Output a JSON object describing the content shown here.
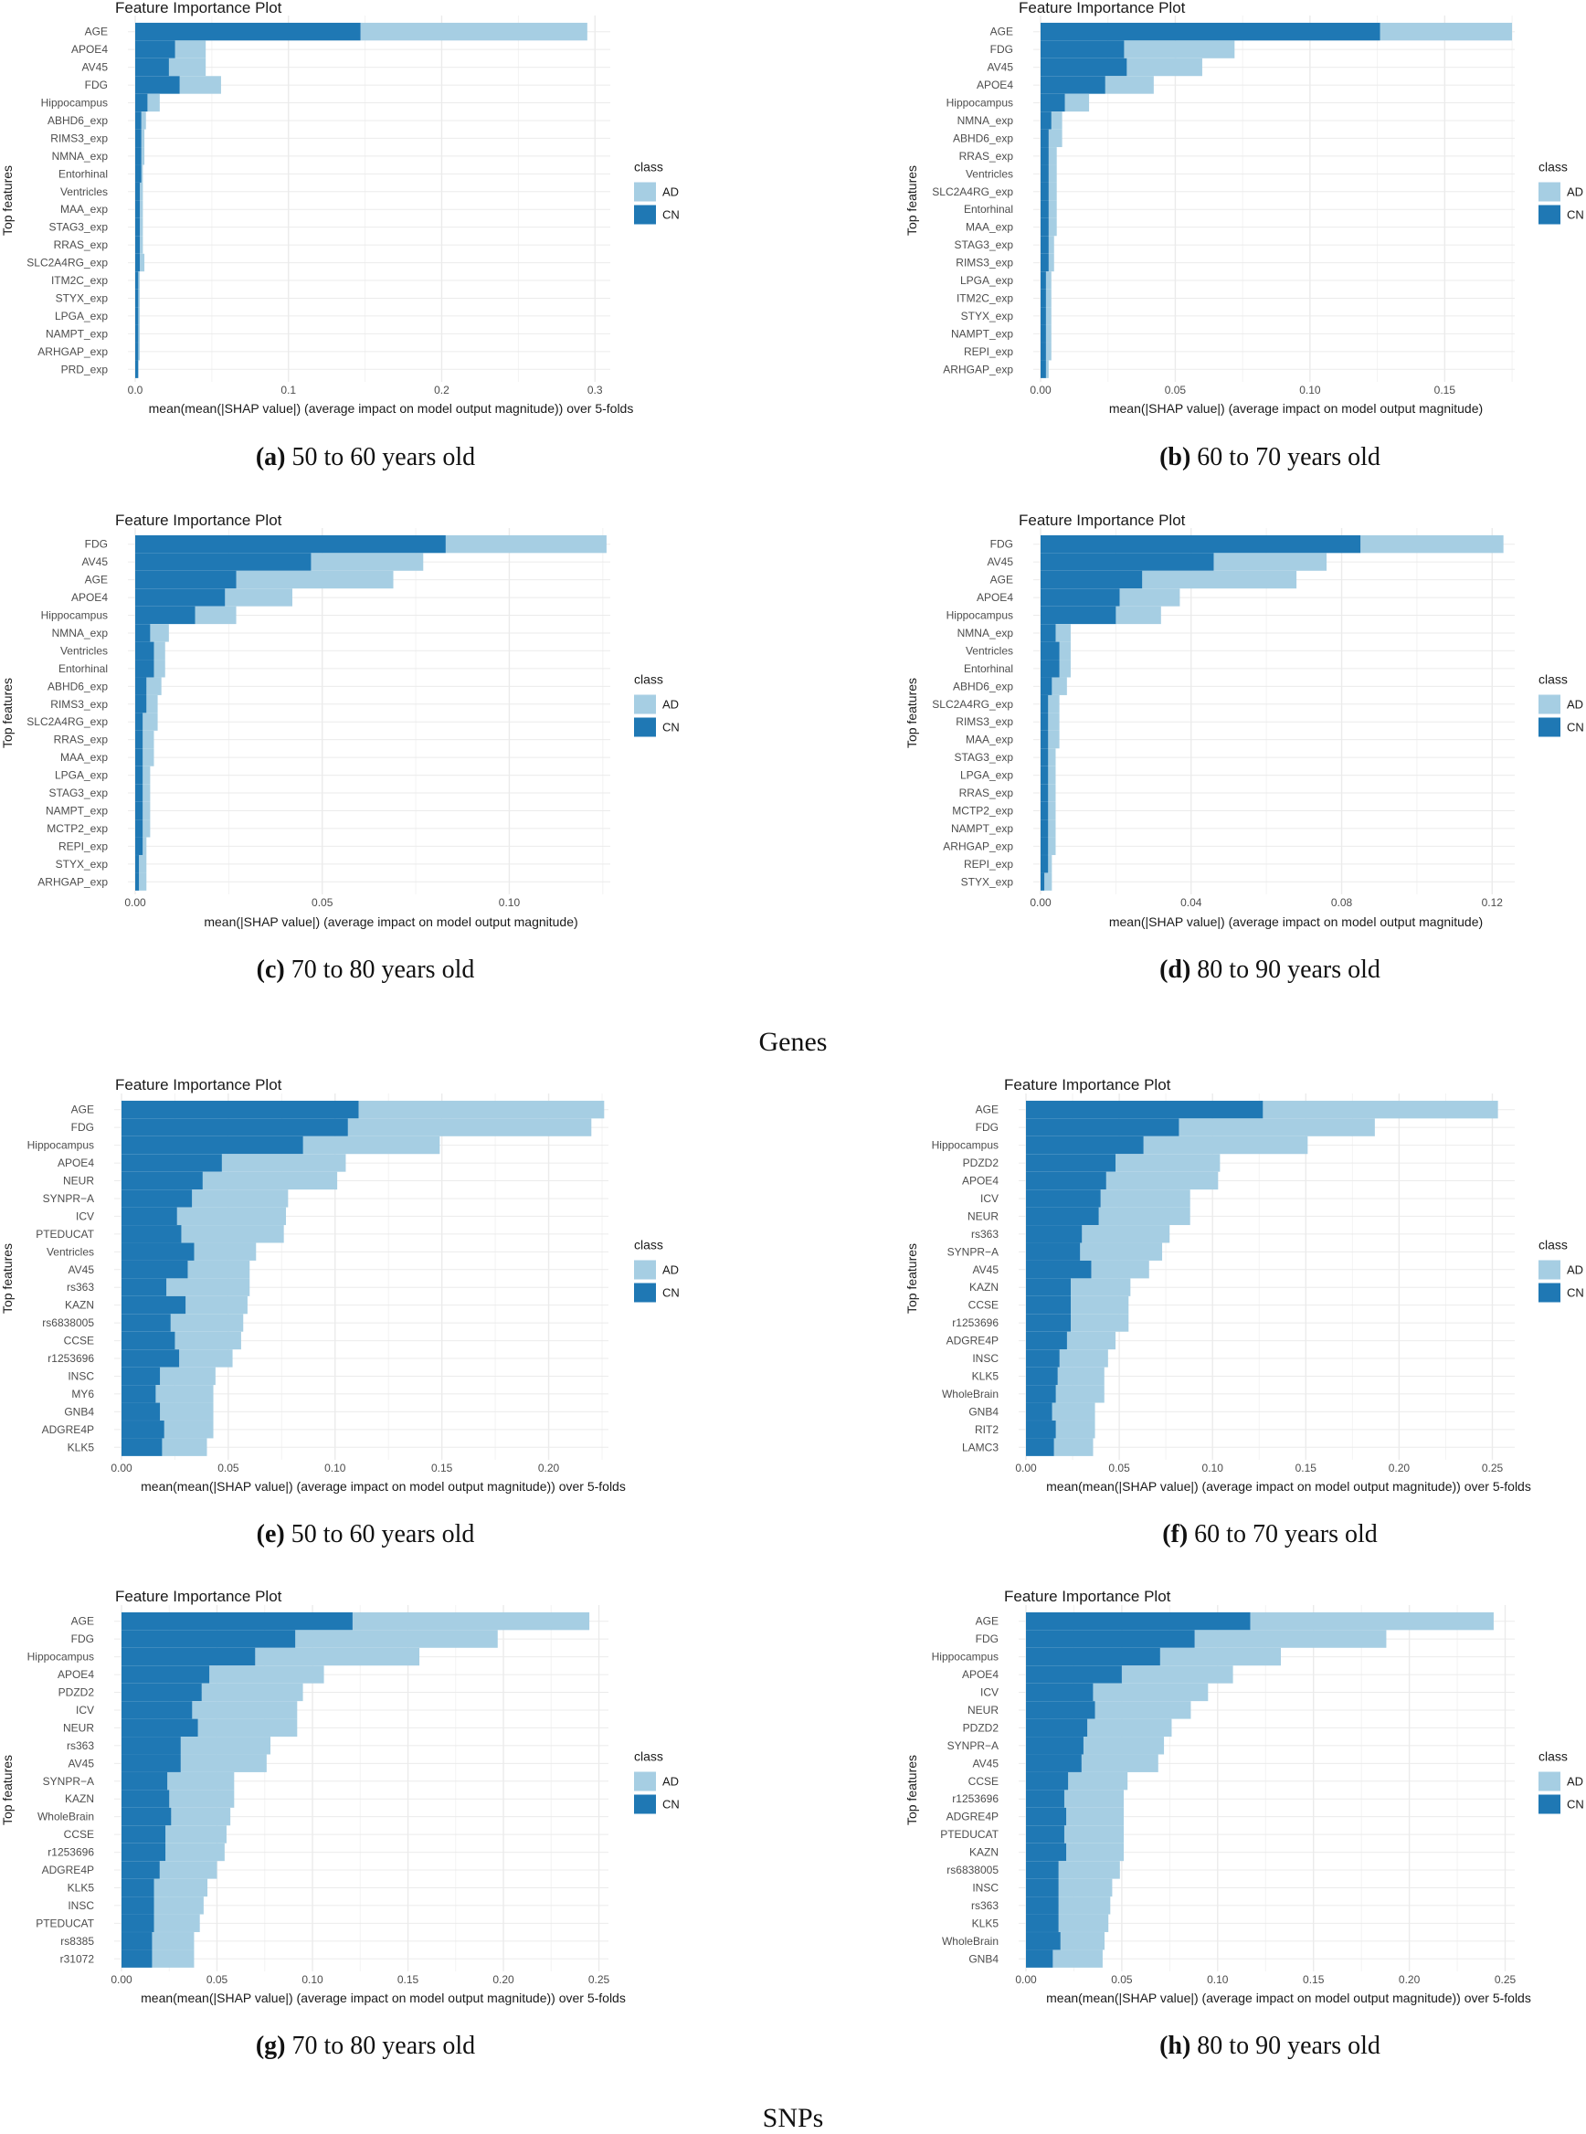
{
  "colors": {
    "ad": "#a6cee3",
    "cn": "#1f78b4",
    "grid": "#ebebeb"
  },
  "sections": {
    "genes": "Genes",
    "snps": "SNPs"
  },
  "chart_data": [
    {
      "type": "bar",
      "stacked": true,
      "orientation": "horizontal",
      "title": "Feature Importance Plot",
      "xlabel": "mean(mean(|SHAP value|) (average impact on model output magnitude)) over 5-folds",
      "ylabel": "Top features",
      "legend_title": "class",
      "legend": [
        "AD",
        "CN"
      ],
      "xlim": [
        0,
        0.31
      ],
      "ticks": [
        0,
        0.1,
        0.2,
        0.3
      ],
      "tick_labels": [
        "0.0",
        "0.1",
        "0.2",
        "0.3"
      ],
      "caption_tag": "(a)",
      "caption_text": " 50 to 60 years old",
      "categories": [
        "AGE",
        "APOE4",
        "AV45",
        "FDG",
        "Hippocampus",
        "ABHD6_exp",
        "RIMS3_exp",
        "NMNA_exp",
        "Entorhinal",
        "Ventricles",
        "MAA_exp",
        "STAG3_exp",
        "RRAS_exp",
        "SLC2A4RG_exp",
        "ITM2C_exp",
        "STYX_exp",
        "LPGA_exp",
        "NAMPT_exp",
        "ARHGAP_exp",
        "PRD_exp"
      ],
      "series": [
        {
          "name": "CN",
          "values": [
            0.147,
            0.026,
            0.022,
            0.029,
            0.008,
            0.004,
            0.004,
            0.004,
            0.004,
            0.003,
            0.003,
            0.003,
            0.003,
            0.003,
            0.002,
            0.002,
            0.002,
            0.002,
            0.002,
            0.002
          ]
        },
        {
          "name": "AD",
          "values": [
            0.148,
            0.02,
            0.024,
            0.027,
            0.008,
            0.003,
            0.002,
            0.002,
            0.001,
            0.002,
            0.002,
            0.002,
            0.002,
            0.003,
            0.001,
            0.001,
            0.001,
            0.001,
            0.001,
            0.0
          ]
        }
      ]
    },
    {
      "type": "bar",
      "stacked": true,
      "orientation": "horizontal",
      "title": "Feature Importance Plot",
      "xlabel": "mean(|SHAP value|) (average impact on model output magnitude)",
      "ylabel": "Top features",
      "legend_title": "class",
      "legend": [
        "AD",
        "CN"
      ],
      "xlim": [
        0,
        0.176
      ],
      "ticks": [
        0,
        0.05,
        0.1,
        0.15
      ],
      "tick_labels": [
        "0.00",
        "0.05",
        "0.10",
        "0.15"
      ],
      "caption_tag": "(b)",
      "caption_text": " 60 to 70 years old",
      "categories": [
        "AGE",
        "FDG",
        "AV45",
        "APOE4",
        "Hippocampus",
        "NMNA_exp",
        "ABHD6_exp",
        "RRAS_exp",
        "Ventricles",
        "SLC2A4RG_exp",
        "Entorhinal",
        "MAA_exp",
        "STAG3_exp",
        "RIMS3_exp",
        "LPGA_exp",
        "ITM2C_exp",
        "STYX_exp",
        "NAMPT_exp",
        "REPI_exp",
        "ARHGAP_exp"
      ],
      "series": [
        {
          "name": "CN",
          "values": [
            0.126,
            0.031,
            0.032,
            0.024,
            0.009,
            0.004,
            0.003,
            0.003,
            0.003,
            0.003,
            0.003,
            0.003,
            0.003,
            0.003,
            0.002,
            0.002,
            0.002,
            0.002,
            0.002,
            0.002
          ]
        },
        {
          "name": "AD",
          "values": [
            0.049,
            0.041,
            0.028,
            0.018,
            0.009,
            0.004,
            0.005,
            0.003,
            0.003,
            0.003,
            0.003,
            0.003,
            0.002,
            0.002,
            0.002,
            0.002,
            0.002,
            0.002,
            0.002,
            0.001
          ]
        }
      ]
    },
    {
      "type": "bar",
      "stacked": true,
      "orientation": "horizontal",
      "title": "Feature Importance Plot",
      "xlabel": "mean(|SHAP value|) (average impact on model output magnitude)",
      "ylabel": "Top features",
      "legend_title": "class",
      "legend": [
        "AD",
        "CN"
      ],
      "xlim": [
        0,
        0.127
      ],
      "ticks": [
        0,
        0.05,
        0.1
      ],
      "tick_labels": [
        "0.00",
        "0.05",
        "0.10"
      ],
      "caption_tag": "(c)",
      "caption_text": " 70 to 80 years old",
      "categories": [
        "FDG",
        "AV45",
        "AGE",
        "APOE4",
        "Hippocampus",
        "NMNA_exp",
        "Ventricles",
        "Entorhinal",
        "ABHD6_exp",
        "RIMS3_exp",
        "SLC2A4RG_exp",
        "RRAS_exp",
        "MAA_exp",
        "LPGA_exp",
        "STAG3_exp",
        "NAMPT_exp",
        "MCTP2_exp",
        "REPI_exp",
        "STYX_exp",
        "ARHGAP_exp"
      ],
      "series": [
        {
          "name": "CN",
          "values": [
            0.083,
            0.047,
            0.027,
            0.024,
            0.016,
            0.004,
            0.005,
            0.005,
            0.003,
            0.003,
            0.002,
            0.002,
            0.002,
            0.002,
            0.002,
            0.002,
            0.002,
            0.002,
            0.001,
            0.001
          ]
        },
        {
          "name": "AD",
          "values": [
            0.043,
            0.03,
            0.042,
            0.018,
            0.011,
            0.005,
            0.003,
            0.003,
            0.004,
            0.003,
            0.004,
            0.003,
            0.003,
            0.002,
            0.002,
            0.002,
            0.002,
            0.001,
            0.002,
            0.002
          ]
        }
      ]
    },
    {
      "type": "bar",
      "stacked": true,
      "orientation": "horizontal",
      "title": "Feature Importance Plot",
      "xlabel": "mean(|SHAP value|) (average impact on model output magnitude)",
      "ylabel": "Top features",
      "legend_title": "class",
      "legend": [
        "AD",
        "CN"
      ],
      "xlim": [
        0,
        0.126
      ],
      "ticks": [
        0,
        0.04,
        0.08,
        0.12
      ],
      "tick_labels": [
        "0.00",
        "0.04",
        "0.08",
        "0.12"
      ],
      "caption_tag": "(d)",
      "caption_text": " 80 to 90 years old",
      "categories": [
        "FDG",
        "AV45",
        "AGE",
        "APOE4",
        "Hippocampus",
        "NMNA_exp",
        "Ventricles",
        "Entorhinal",
        "ABHD6_exp",
        "SLC2A4RG_exp",
        "RIMS3_exp",
        "MAA_exp",
        "STAG3_exp",
        "LPGA_exp",
        "RRAS_exp",
        "MCTP2_exp",
        "NAMPT_exp",
        "ARHGAP_exp",
        "REPI_exp",
        "STYX_exp"
      ],
      "series": [
        {
          "name": "CN",
          "values": [
            0.085,
            0.046,
            0.027,
            0.021,
            0.02,
            0.004,
            0.005,
            0.005,
            0.003,
            0.002,
            0.002,
            0.002,
            0.002,
            0.002,
            0.002,
            0.002,
            0.002,
            0.002,
            0.002,
            0.001
          ]
        },
        {
          "name": "AD",
          "values": [
            0.038,
            0.03,
            0.041,
            0.016,
            0.012,
            0.004,
            0.003,
            0.003,
            0.004,
            0.003,
            0.003,
            0.003,
            0.002,
            0.002,
            0.002,
            0.002,
            0.002,
            0.002,
            0.001,
            0.002
          ]
        }
      ]
    },
    {
      "type": "bar",
      "stacked": true,
      "orientation": "horizontal",
      "title": "Feature Importance Plot",
      "xlabel": "mean(mean(|SHAP value|) (average impact on model output magnitude)) over 5-folds",
      "ylabel": "Top features",
      "legend_title": "class",
      "legend": [
        "AD",
        "CN"
      ],
      "xlim": [
        0,
        0.228
      ],
      "ticks": [
        0,
        0.05,
        0.1,
        0.15,
        0.2
      ],
      "tick_labels": [
        "0.00",
        "0.05",
        "0.10",
        "0.15",
        "0.20"
      ],
      "caption_tag": "(e)",
      "caption_text": " 50 to 60 years old",
      "categories": [
        "AGE",
        "FDG",
        "Hippocampus",
        "APOE4",
        "NEUR",
        "SYNPR−A",
        "ICV",
        "PTEDUCAT",
        "Ventricles",
        "AV45",
        "rs363",
        "KAZN",
        "rs6838005",
        "CCSE",
        "r1253696",
        "INSC",
        "MY6",
        "GNB4",
        "ADGRE4P",
        "KLK5"
      ],
      "series": [
        {
          "name": "CN",
          "values": [
            0.111,
            0.106,
            0.085,
            0.047,
            0.038,
            0.033,
            0.026,
            0.028,
            0.034,
            0.031,
            0.021,
            0.03,
            0.023,
            0.025,
            0.027,
            0.018,
            0.016,
            0.018,
            0.02,
            0.019
          ]
        },
        {
          "name": "AD",
          "values": [
            0.115,
            0.114,
            0.064,
            0.058,
            0.063,
            0.045,
            0.051,
            0.048,
            0.029,
            0.029,
            0.039,
            0.029,
            0.034,
            0.031,
            0.025,
            0.026,
            0.027,
            0.025,
            0.023,
            0.021
          ]
        }
      ]
    },
    {
      "type": "bar",
      "stacked": true,
      "orientation": "horizontal",
      "title": "Feature Importance Plot",
      "xlabel": "mean(mean(|SHAP value|) (average impact on model output magnitude)) over 5-folds",
      "ylabel": "Top features",
      "legend_title": "class",
      "legend": [
        "AD",
        "CN"
      ],
      "xlim": [
        0,
        0.262
      ],
      "ticks": [
        0,
        0.05,
        0.1,
        0.15,
        0.2,
        0.25
      ],
      "tick_labels": [
        "0.00",
        "0.05",
        "0.10",
        "0.15",
        "0.20",
        "0.25"
      ],
      "caption_tag": "(f)",
      "caption_text": " 60 to 70 years old",
      "categories": [
        "AGE",
        "FDG",
        "Hippocampus",
        "PDZD2",
        "APOE4",
        "ICV",
        "NEUR",
        "rs363",
        "SYNPR−A",
        "AV45",
        "KAZN",
        "CCSE",
        "r1253696",
        "ADGRE4P",
        "INSC",
        "KLK5",
        "WholeBrain",
        "GNB4",
        "RIT2",
        "LAMC3"
      ],
      "series": [
        {
          "name": "CN",
          "values": [
            0.127,
            0.082,
            0.063,
            0.048,
            0.043,
            0.04,
            0.039,
            0.03,
            0.029,
            0.035,
            0.024,
            0.024,
            0.024,
            0.022,
            0.018,
            0.017,
            0.016,
            0.014,
            0.016,
            0.015
          ]
        },
        {
          "name": "AD",
          "values": [
            0.126,
            0.105,
            0.088,
            0.056,
            0.06,
            0.048,
            0.049,
            0.047,
            0.044,
            0.031,
            0.032,
            0.031,
            0.031,
            0.026,
            0.026,
            0.025,
            0.026,
            0.023,
            0.021,
            0.021
          ]
        }
      ]
    },
    {
      "type": "bar",
      "stacked": true,
      "orientation": "horizontal",
      "title": "Feature Importance Plot",
      "xlabel": "mean(mean(|SHAP value|) (average impact on model output magnitude)) over 5-folds",
      "ylabel": "Top features",
      "legend_title": "class",
      "legend": [
        "AD",
        "CN"
      ],
      "xlim": [
        0,
        0.255
      ],
      "ticks": [
        0,
        0.05,
        0.1,
        0.15,
        0.2,
        0.25
      ],
      "tick_labels": [
        "0.00",
        "0.05",
        "0.10",
        "0.15",
        "0.20",
        "0.25"
      ],
      "caption_tag": "(g)",
      "caption_text": " 70 to 80 years old",
      "categories": [
        "AGE",
        "FDG",
        "Hippocampus",
        "APOE4",
        "PDZD2",
        "ICV",
        "NEUR",
        "rs363",
        "AV45",
        "SYNPR−A",
        "KAZN",
        "WholeBrain",
        "CCSE",
        "r1253696",
        "ADGRE4P",
        "KLK5",
        "INSC",
        "PTEDUCAT",
        "rs8385",
        "r31072"
      ],
      "series": [
        {
          "name": "CN",
          "values": [
            0.121,
            0.091,
            0.07,
            0.046,
            0.042,
            0.037,
            0.04,
            0.031,
            0.031,
            0.024,
            0.025,
            0.026,
            0.023,
            0.023,
            0.02,
            0.017,
            0.017,
            0.017,
            0.016,
            0.016
          ]
        },
        {
          "name": "AD",
          "values": [
            0.124,
            0.106,
            0.086,
            0.06,
            0.053,
            0.055,
            0.052,
            0.047,
            0.045,
            0.035,
            0.034,
            0.031,
            0.032,
            0.031,
            0.03,
            0.028,
            0.026,
            0.024,
            0.022,
            0.022
          ]
        }
      ]
    },
    {
      "type": "bar",
      "stacked": true,
      "orientation": "horizontal",
      "title": "Feature Importance Plot",
      "xlabel": "mean(mean(|SHAP value|) (average impact on model output magnitude)) over 5-folds",
      "ylabel": "Top features",
      "legend_title": "class",
      "legend": [
        "AD",
        "CN"
      ],
      "xlim": [
        0,
        0.255
      ],
      "ticks": [
        0,
        0.05,
        0.1,
        0.15,
        0.2,
        0.25
      ],
      "tick_labels": [
        "0.00",
        "0.05",
        "0.10",
        "0.15",
        "0.20",
        "0.25"
      ],
      "caption_tag": "(h)",
      "caption_text": " 80 to 90 years old",
      "categories": [
        "AGE",
        "FDG",
        "Hippocampus",
        "APOE4",
        "ICV",
        "NEUR",
        "PDZD2",
        "SYNPR−A",
        "AV45",
        "CCSE",
        "r1253696",
        "ADGRE4P",
        "PTEDUCAT",
        "KAZN",
        "rs6838005",
        "INSC",
        "rs363",
        "KLK5",
        "WholeBrain",
        "GNB4"
      ],
      "series": [
        {
          "name": "CN",
          "values": [
            0.117,
            0.088,
            0.07,
            0.05,
            0.035,
            0.036,
            0.032,
            0.03,
            0.029,
            0.022,
            0.02,
            0.021,
            0.02,
            0.021,
            0.017,
            0.017,
            0.017,
            0.017,
            0.018,
            0.014
          ]
        },
        {
          "name": "AD",
          "values": [
            0.127,
            0.1,
            0.063,
            0.058,
            0.06,
            0.05,
            0.044,
            0.042,
            0.04,
            0.031,
            0.031,
            0.03,
            0.031,
            0.03,
            0.032,
            0.028,
            0.027,
            0.026,
            0.023,
            0.026
          ]
        }
      ]
    }
  ]
}
